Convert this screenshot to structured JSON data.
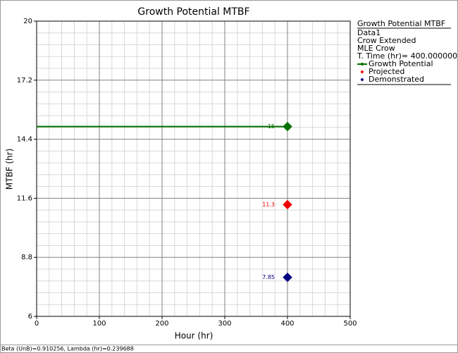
{
  "chart_data": {
    "type": "line",
    "title": "Growth Potential MTBF",
    "x_label": "Hour (hr)",
    "y_label": "MTBF (hr)",
    "xlim": [
      0,
      500
    ],
    "xticks": [
      0,
      100,
      200,
      300,
      400,
      500
    ],
    "ylim": [
      6,
      20
    ],
    "yticks": [
      6,
      8.8,
      11.6,
      14.4,
      17.2,
      20
    ],
    "grid": true,
    "legend_title": "Growth Potential MTBF",
    "legend_info": [
      "Data1",
      "Crow Extended",
      "MLE Crow",
      "T. Time (hr)= 400.000000"
    ],
    "series": [
      {
        "name": "Growth Potential",
        "color": "#007000",
        "x": [
          0,
          400
        ],
        "values": [
          15,
          15
        ]
      },
      {
        "name": "Projected",
        "color": "#ee0000",
        "x": [
          400
        ],
        "values": [
          11.3
        ]
      },
      {
        "name": "Demonstrated",
        "color": "#000080",
        "x": [
          400
        ],
        "values": [
          7.85
        ]
      }
    ],
    "footer": "Beta (UnB)=0.910256, Lambda (hr)=0.239688"
  }
}
